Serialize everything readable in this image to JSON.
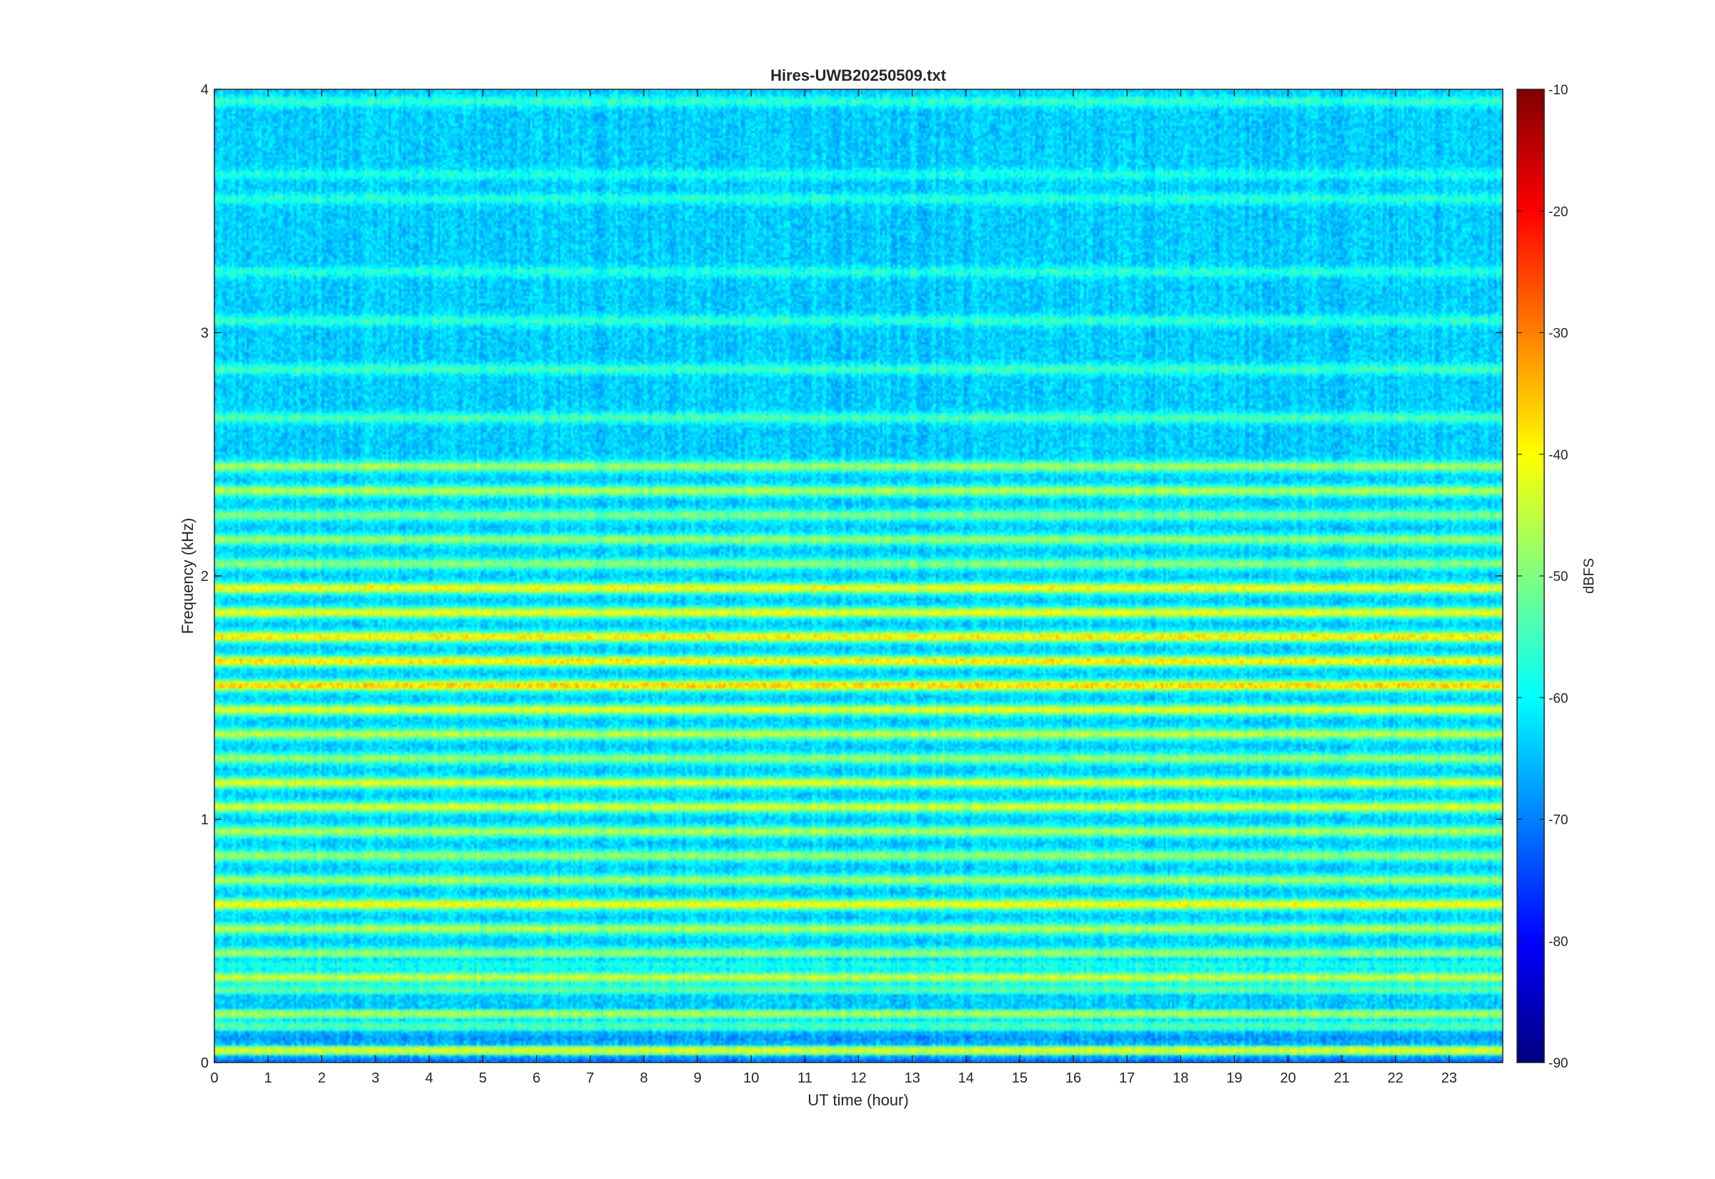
{
  "chart_data": {
    "type": "heatmap",
    "title": "Hires-UWB20250509.txt",
    "xlabel": "UT time (hour)",
    "ylabel": "Frequency (kHz)",
    "xlim": [
      0,
      24
    ],
    "ylim": [
      0,
      4
    ],
    "x_ticks": [
      0,
      1,
      2,
      3,
      4,
      5,
      6,
      7,
      8,
      9,
      10,
      11,
      12,
      13,
      14,
      15,
      16,
      17,
      18,
      19,
      20,
      21,
      22,
      23
    ],
    "y_ticks": [
      0,
      1,
      2,
      3,
      4
    ],
    "colormap": "jet",
    "colorbar": {
      "label": "dBFS",
      "range": [
        -90,
        -10
      ],
      "ticks": [
        -10,
        -20,
        -30,
        -40,
        -50,
        -60,
        -70,
        -80,
        -90
      ]
    },
    "bands": [
      {
        "f": 0.0,
        "level": -72
      },
      {
        "f": 0.05,
        "level": -43
      },
      {
        "f": 0.1,
        "level": -68
      },
      {
        "f": 0.15,
        "level": -54
      },
      {
        "f": 0.2,
        "level": -47
      },
      {
        "f": 0.25,
        "level": -64
      },
      {
        "f": 0.3,
        "level": -53
      },
      {
        "f": 0.35,
        "level": -44
      },
      {
        "f": 0.4,
        "level": -58
      },
      {
        "f": 0.45,
        "level": -48
      },
      {
        "f": 0.55,
        "level": -46
      },
      {
        "f": 0.65,
        "level": -40
      },
      {
        "f": 0.75,
        "level": -47
      },
      {
        "f": 0.85,
        "level": -48
      },
      {
        "f": 0.95,
        "level": -46
      },
      {
        "f": 1.05,
        "level": -43
      },
      {
        "f": 1.15,
        "level": -42
      },
      {
        "f": 1.25,
        "level": -48
      },
      {
        "f": 1.35,
        "level": -45
      },
      {
        "f": 1.45,
        "level": -42
      },
      {
        "f": 1.55,
        "level": -36
      },
      {
        "f": 1.65,
        "level": -38
      },
      {
        "f": 1.75,
        "level": -38
      },
      {
        "f": 1.85,
        "level": -41
      },
      {
        "f": 1.95,
        "level": -40
      },
      {
        "f": 2.05,
        "level": -49
      },
      {
        "f": 2.15,
        "level": -48
      },
      {
        "f": 2.25,
        "level": -50
      },
      {
        "f": 2.35,
        "level": -46
      },
      {
        "f": 2.45,
        "level": -47
      },
      {
        "f": 2.65,
        "level": -54
      },
      {
        "f": 2.85,
        "level": -55
      },
      {
        "f": 3.05,
        "level": -56
      },
      {
        "f": 3.25,
        "level": -57
      },
      {
        "f": 3.55,
        "level": -57
      },
      {
        "f": 3.65,
        "level": -58
      },
      {
        "f": 3.95,
        "level": -56
      }
    ],
    "background_level": -64
  }
}
